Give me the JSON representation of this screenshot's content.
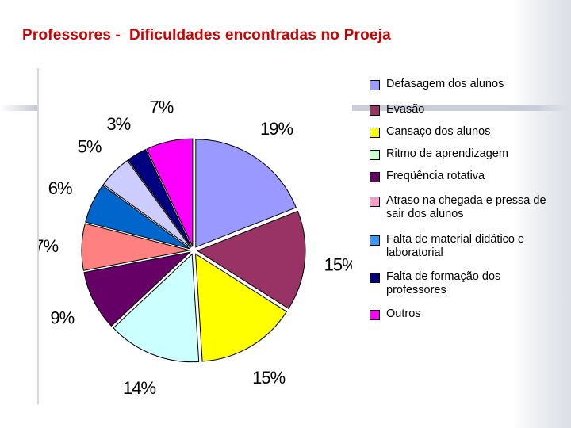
{
  "slide": {
    "title": "Professores -  Dificuldades encontradas no Proeja"
  },
  "chart_data": {
    "type": "pie",
    "title": "",
    "legend_position": "right",
    "start_angle_deg": 0,
    "direction": "clockwise",
    "exploded": true,
    "slices": [
      {
        "name": "Defasagem dos alunos",
        "value": 19,
        "label": "19%",
        "color": "#9999ff"
      },
      {
        "name": "Evasão",
        "value": 15,
        "label": "15%",
        "color": "#993366"
      },
      {
        "name": "Cansaço dos alunos",
        "value": 15,
        "label": "15%",
        "color": "#ffff00"
      },
      {
        "name": "Ritmo de aprendizagem",
        "value": 14,
        "label": "14%",
        "color": "#ccffff"
      },
      {
        "name": "Freqüência rotativa",
        "value": 9,
        "label": "9%",
        "color": "#660066"
      },
      {
        "name": "Atraso na chegada e pressa de sair dos alunos",
        "value": 7,
        "label": "7%",
        "color": "#ff8080"
      },
      {
        "name": "Falta de material didático e laboratorial",
        "value": 6,
        "label": "6%",
        "color": "#0066cc"
      },
      {
        "name": "Falta de formação dos professores",
        "value": 5,
        "label": "5%",
        "color": "#ccccff"
      },
      {
        "name": "Outros",
        "value": 3,
        "label": "3%",
        "color": "#000080"
      },
      {
        "name": "",
        "value": 7,
        "label": "7%",
        "color": "#ff00ff"
      }
    ],
    "legend": [
      {
        "label": "Defasagem dos alunos",
        "color": "#9999ff"
      },
      {
        "label": "Evasão",
        "color": "#993366"
      },
      {
        "label": "Cansaço dos alunos",
        "color": "#ffff00"
      },
      {
        "label": "Ritmo de aprendizagem",
        "color": "#ccffcc"
      },
      {
        "label": "Freqüência rotativa",
        "color": "#660066"
      },
      {
        "label": "Atraso na chegada e pressa de sair dos alunos",
        "color": "#ff99cc"
      },
      {
        "label": "Falta de material didático e laboratorial",
        "color": "#3399ff"
      },
      {
        "label": "Falta de formação dos professores",
        "color": "#000080"
      },
      {
        "label": "Outros",
        "color": "#ff00ff"
      }
    ]
  }
}
